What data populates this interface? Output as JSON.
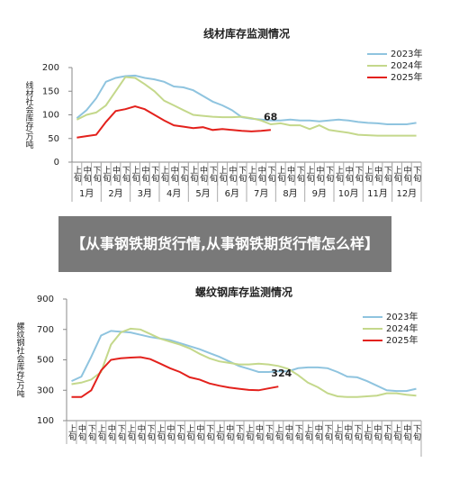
{
  "banner": "【从事钢铁期货行情,从事钢铁期货行情怎么样】",
  "chart_data": [
    {
      "type": "line",
      "title": "线材库存监测情况",
      "y_label": "线材社会库存/万吨",
      "categories": [
        "上旬",
        "中旬",
        "下旬",
        "上旬",
        "中旬",
        "下旬",
        "上旬",
        "中旬",
        "下旬",
        "上旬",
        "中旬",
        "下旬",
        "上旬",
        "中旬",
        "下旬",
        "上旬",
        "中旬",
        "下旬",
        "上旬",
        "中旬",
        "下旬",
        "上旬",
        "中旬",
        "下旬",
        "上旬",
        "中旬",
        "下旬",
        "上旬",
        "中旬",
        "下旬",
        "上旬",
        "中旬",
        "下旬",
        "上旬",
        "中旬",
        "下旬"
      ],
      "months": [
        "1月",
        "2月",
        "3月",
        "4月",
        "5月",
        "6月",
        "7月",
        "8月",
        "9月",
        "10月",
        "11月",
        "12月"
      ],
      "ylim": [
        0,
        200
      ],
      "yticks": [
        0,
        50,
        100,
        150,
        200
      ],
      "legend": "upper right",
      "series": [
        {
          "name": "2023年",
          "color": "#8fc4df",
          "values": [
            93,
            110,
            135,
            170,
            178,
            182,
            183,
            178,
            175,
            170,
            160,
            158,
            152,
            140,
            128,
            120,
            110,
            95,
            92,
            90,
            88,
            88,
            90,
            88,
            88,
            86,
            88,
            90,
            88,
            85,
            83,
            82,
            80,
            80,
            80,
            83
          ]
        },
        {
          "name": "2024年",
          "color": "#c4d88b",
          "values": [
            90,
            100,
            105,
            120,
            150,
            180,
            178,
            165,
            150,
            130,
            120,
            110,
            100,
            98,
            96,
            95,
            95,
            96,
            93,
            88,
            80,
            82,
            78,
            78,
            70,
            78,
            68,
            65,
            62,
            58,
            57,
            56,
            56,
            56,
            56,
            56
          ]
        },
        {
          "name": "2025年",
          "color": "#e3211c",
          "values": [
            52,
            55,
            58,
            85,
            108,
            112,
            118,
            112,
            100,
            88,
            78,
            75,
            72,
            74,
            68,
            70,
            68,
            66,
            65,
            66,
            68,
            null,
            null,
            null,
            null,
            null,
            null,
            null,
            null,
            null,
            null,
            null,
            null,
            null,
            null,
            null
          ]
        }
      ]
    },
    {
      "type": "line",
      "title": "螺纹钢库存监测情况",
      "y_label": "螺纹钢社会库存/万吨",
      "categories": [
        "上旬",
        "中旬",
        "下旬",
        "上旬",
        "中旬",
        "下旬",
        "上旬",
        "中旬",
        "下旬",
        "上旬",
        "中旬",
        "下旬",
        "上旬",
        "中旬",
        "下旬",
        "上旬",
        "中旬",
        "下旬",
        "上旬",
        "中旬",
        "下旬",
        "上旬",
        "中旬",
        "下旬",
        "上旬",
        "中旬",
        "下旬",
        "上旬",
        "中旬",
        "下旬",
        "上旬",
        "中旬",
        "下旬",
        "上旬",
        "中旬",
        "下旬"
      ],
      "ylim": [
        100,
        900
      ],
      "yticks": [
        100,
        300,
        500,
        700,
        900
      ],
      "legend": "upper right",
      "series": [
        {
          "name": "2023年",
          "color": "#8fc4df",
          "values": [
            360,
            390,
            520,
            660,
            690,
            685,
            680,
            665,
            650,
            640,
            630,
            610,
            590,
            570,
            545,
            520,
            490,
            460,
            440,
            420,
            420,
            425,
            425,
            445,
            450,
            450,
            445,
            420,
            390,
            385,
            360,
            330,
            300,
            295,
            295,
            310
          ]
        },
        {
          "name": "2024年",
          "color": "#c4d88b",
          "values": [
            340,
            350,
            370,
            420,
            600,
            680,
            705,
            700,
            670,
            640,
            620,
            600,
            575,
            540,
            510,
            490,
            480,
            470,
            470,
            475,
            470,
            460,
            440,
            400,
            350,
            320,
            280,
            260,
            255,
            255,
            260,
            265,
            280,
            280,
            270,
            265
          ]
        },
        {
          "name": "2025年",
          "color": "#e3211c",
          "values": [
            255,
            255,
            300,
            430,
            500,
            510,
            515,
            518,
            505,
            475,
            445,
            420,
            385,
            370,
            345,
            330,
            318,
            310,
            302,
            300,
            312,
            324,
            null,
            null,
            null,
            null,
            null,
            null,
            null,
            null,
            null,
            null,
            null,
            null,
            null,
            null
          ]
        }
      ]
    }
  ]
}
